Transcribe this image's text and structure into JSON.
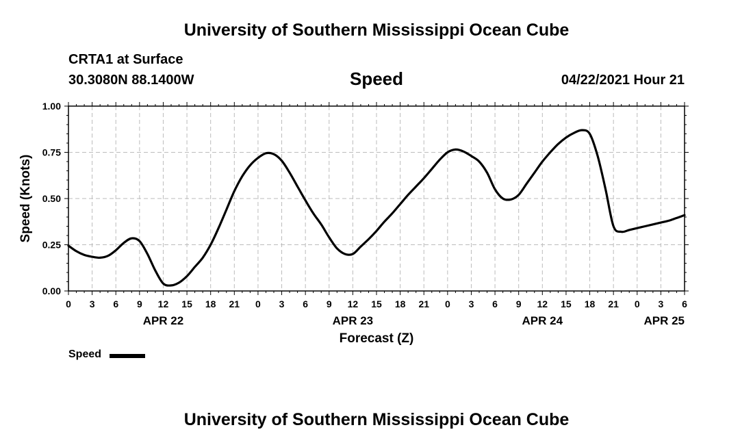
{
  "header": {
    "top_title": "University of Southern Mississippi Ocean Cube",
    "bottom_title": "University of Southern Mississippi Ocean Cube",
    "station": "CRTA1 at Surface",
    "coords": "30.3080N  88.1400W",
    "variable": "Speed",
    "datetime": "04/22/2021 Hour 21"
  },
  "legend": {
    "label": "Speed",
    "color": "#000000"
  },
  "chart_data": {
    "type": "line",
    "title": "Speed",
    "xlabel": "Forecast (Z)",
    "ylabel": "Speed (Knots)",
    "ylim": [
      0,
      1
    ],
    "yticks": [
      "0.00",
      "0.25",
      "0.50",
      "0.75",
      "1.00"
    ],
    "ytick_values": [
      0,
      0.25,
      0.5,
      0.75,
      1.0
    ],
    "xlim": [
      0,
      78
    ],
    "xticks": [
      "0",
      "3",
      "6",
      "9",
      "12",
      "15",
      "18",
      "21",
      "0",
      "3",
      "6",
      "9",
      "12",
      "15",
      "18",
      "21",
      "0",
      "3",
      "6",
      "9",
      "12",
      "15",
      "18",
      "21",
      "0",
      "3",
      "6"
    ],
    "date_labels": [
      {
        "label": "APR 22",
        "hour": 12
      },
      {
        "label": "APR 23",
        "hour": 36
      },
      {
        "label": "APR 24",
        "hour": 60
      },
      {
        "label": "APR 25",
        "hour": 78
      }
    ],
    "grid": true,
    "legend_position": "bottom-left",
    "series": [
      {
        "name": "Speed",
        "color": "#000000",
        "x": [
          0,
          1,
          2,
          3,
          4,
          5,
          6,
          7,
          8,
          9,
          10,
          11,
          12,
          13,
          14,
          15,
          16,
          17,
          18,
          19,
          20,
          21,
          22,
          23,
          24,
          25,
          26,
          27,
          28,
          29,
          30,
          31,
          32,
          33,
          34,
          35,
          36,
          37,
          38,
          39,
          40,
          41,
          42,
          43,
          44,
          45,
          46,
          47,
          48,
          49,
          50,
          51,
          52,
          53,
          54,
          55,
          56,
          57,
          58,
          59,
          60,
          61,
          62,
          63,
          64,
          65,
          66,
          67,
          68,
          69,
          70,
          71,
          72,
          73,
          74,
          75,
          76,
          77,
          78
        ],
        "y": [
          0.245,
          0.215,
          0.195,
          0.185,
          0.18,
          0.19,
          0.22,
          0.26,
          0.285,
          0.27,
          0.2,
          0.11,
          0.04,
          0.03,
          0.045,
          0.08,
          0.13,
          0.18,
          0.25,
          0.34,
          0.44,
          0.54,
          0.62,
          0.68,
          0.72,
          0.745,
          0.74,
          0.705,
          0.64,
          0.565,
          0.49,
          0.42,
          0.36,
          0.29,
          0.23,
          0.2,
          0.2,
          0.24,
          0.28,
          0.325,
          0.375,
          0.42,
          0.47,
          0.52,
          0.565,
          0.61,
          0.66,
          0.71,
          0.75,
          0.765,
          0.755,
          0.73,
          0.7,
          0.64,
          0.55,
          0.5,
          0.495,
          0.52,
          0.58,
          0.64,
          0.7,
          0.75,
          0.795,
          0.83,
          0.855,
          0.87,
          0.85,
          0.73,
          0.55,
          0.35,
          0.32,
          0.33,
          0.34,
          0.35,
          0.36,
          0.37,
          0.38,
          0.395,
          0.41
        ]
      }
    ]
  }
}
